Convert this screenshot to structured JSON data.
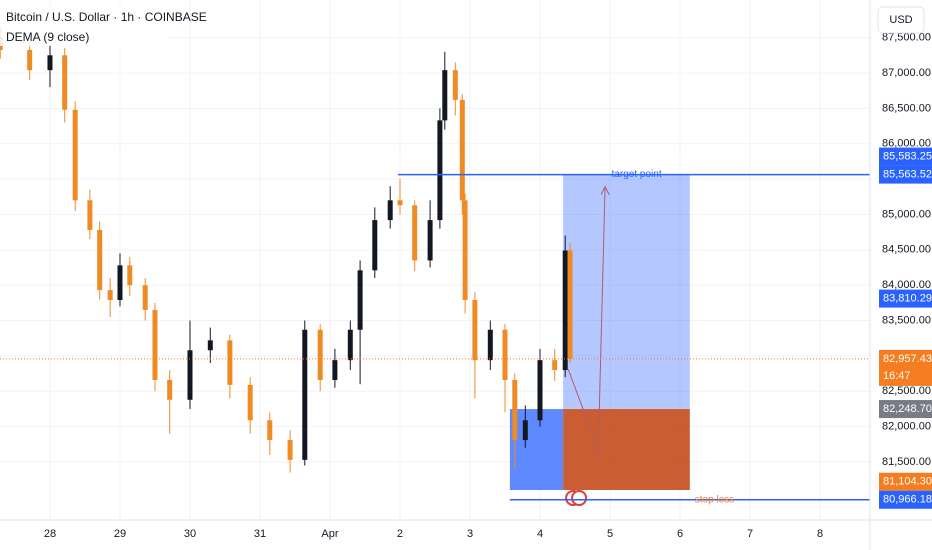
{
  "chart_data": {
    "type": "candlestick",
    "title": "Bitcoin / U.S. Dollar · 1h · COINBASE",
    "indicator": "DEMA (9 close)",
    "currency": "USD",
    "grid": true,
    "up_color": "#131722",
    "down_color": "#f08a24",
    "xlim": [
      -0.714,
      11.714
    ],
    "xticks": [
      {
        "value": 0,
        "label": "28"
      },
      {
        "value": 1,
        "label": "29"
      },
      {
        "value": 2,
        "label": "30"
      },
      {
        "value": 3,
        "label": "31"
      },
      {
        "value": 4,
        "label": "Apr"
      },
      {
        "value": 5,
        "label": "2"
      },
      {
        "value": 6,
        "label": "3"
      },
      {
        "value": 7,
        "label": "4"
      },
      {
        "value": 8,
        "label": "5"
      },
      {
        "value": 9,
        "label": "6"
      },
      {
        "value": 10,
        "label": "7"
      },
      {
        "value": 11,
        "label": "8"
      }
    ],
    "ylim": [
      80680,
      88032
    ],
    "yticks": [
      {
        "value": 81500,
        "label": "81,500.00"
      },
      {
        "value": 82000,
        "label": "82,000.00"
      },
      {
        "value": 82500,
        "label": "82,500.00"
      },
      {
        "value": 83000,
        "label": "83,000.00"
      },
      {
        "value": 83500,
        "label": "83,500.00"
      },
      {
        "value": 84000,
        "label": "84,000.00"
      },
      {
        "value": 84500,
        "label": "84,500.00"
      },
      {
        "value": 85000,
        "label": "85,000.00"
      },
      {
        "value": 85500,
        "label": "85,500.00"
      },
      {
        "value": 86000,
        "label": "86,000.00"
      },
      {
        "value": 86500,
        "label": "86,500.00"
      },
      {
        "value": 87000,
        "label": "87,000.00"
      },
      {
        "value": 87500,
        "label": "87,500.00"
      }
    ],
    "candles": {
      "t": [
        -0.71,
        -0.29,
        0,
        0.21,
        0.36,
        0.57,
        0.71,
        0.86,
        1.0,
        1.14,
        1.36,
        1.5,
        1.71,
        2.0,
        2.29,
        2.57,
        2.86,
        3.14,
        3.43,
        3.64,
        3.86,
        4.07,
        4.29,
        4.43,
        4.64,
        4.86,
        5.0,
        5.21,
        5.43,
        5.57,
        5.64,
        5.79,
        5.89,
        5.93,
        6.07,
        6.29,
        6.5,
        6.64,
        6.79,
        7.0,
        7.21,
        7.36,
        7.43
      ],
      "open": [
        87500,
        87325,
        87040,
        87250,
        86480,
        85200,
        84780,
        83930,
        83790,
        84280,
        84000,
        83650,
        82660,
        82380,
        83080,
        83220,
        82590,
        82090,
        81810,
        81530,
        83370,
        82660,
        82940,
        83370,
        84210,
        84920,
        85200,
        85130,
        84350,
        84920,
        86330,
        87040,
        86620,
        85200,
        83790,
        82940,
        83370,
        82660,
        81810,
        82090,
        82940,
        82800,
        84490
      ],
      "high": [
        87650,
        87450,
        87400,
        87350,
        86600,
        85350,
        84900,
        84100,
        84450,
        84400,
        84100,
        83750,
        82800,
        83500,
        83400,
        83300,
        82700,
        82200,
        81950,
        83500,
        83450,
        83100,
        83500,
        84350,
        85100,
        85400,
        85500,
        85200,
        85200,
        86500,
        87300,
        87150,
        86700,
        85300,
        83900,
        83500,
        83450,
        82750,
        82300,
        83100,
        83100,
        84700,
        84600
      ],
      "low": [
        87200,
        86900,
        86800,
        86300,
        85050,
        84650,
        83800,
        83550,
        83700,
        83850,
        83500,
        82500,
        81900,
        82250,
        82900,
        82400,
        81900,
        81600,
        81350,
        81450,
        82500,
        82550,
        82800,
        82600,
        84100,
        84800,
        85000,
        84200,
        84250,
        84800,
        86200,
        86400,
        85000,
        83600,
        82400,
        82800,
        82200,
        81400,
        81700,
        82000,
        82650,
        82700,
        82900
      ],
      "close": [
        87325,
        87040,
        87250,
        86480,
        85200,
        84780,
        83930,
        83790,
        84280,
        84000,
        83650,
        82660,
        82380,
        83080,
        83220,
        82590,
        82090,
        81810,
        81530,
        83370,
        82660,
        82940,
        83370,
        84210,
        84920,
        85200,
        85130,
        84350,
        84920,
        86330,
        87040,
        86620,
        85200,
        83790,
        82940,
        83370,
        82660,
        81810,
        82090,
        82940,
        82800,
        84490,
        82957.43
      ]
    },
    "position": {
      "t_start": 7.33,
      "t_end": 9.14,
      "pre_start": 6.57,
      "entry": 82248.7,
      "target": 85563.52,
      "stop": 81104.3
    },
    "target_line": {
      "t_start": 4.97,
      "value": 85563.52,
      "label": "target point"
    },
    "stop_line": {
      "t_start": 6.57,
      "value": 80966.18,
      "label": "stop loss"
    },
    "price_labels": [
      {
        "value": 85583.25,
        "label": "85,583.25",
        "color": "#2962ff"
      },
      {
        "value": 85563.52,
        "label": "85,563.52",
        "color": "#2962ff"
      },
      {
        "value": 83810.29,
        "label": "83,810.29",
        "color": "#2962ff"
      },
      {
        "value": 82957.43,
        "label": "82,957.43",
        "color": "#f57c1f",
        "sub": "16:47"
      },
      {
        "value": 82248.7,
        "label": "82,248.70",
        "color": "#787b86"
      },
      {
        "value": 81104.3,
        "label": "81,104.30",
        "color": "#f57c1f"
      },
      {
        "value": 80966.18,
        "label": "80,966.18",
        "color": "#2962ff"
      }
    ]
  }
}
